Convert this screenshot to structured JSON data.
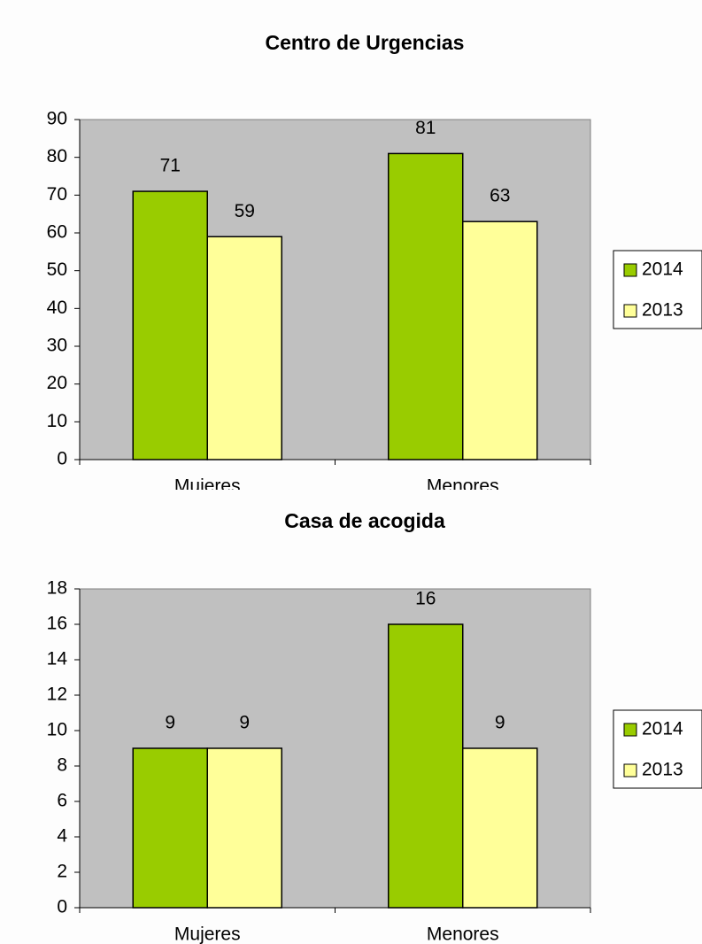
{
  "chart_data": [
    {
      "type": "bar",
      "title": "Centro de Urgencias",
      "categories": [
        "Mujeres",
        "Menores"
      ],
      "series": [
        {
          "name": "2014",
          "color": "#99cc00",
          "values": [
            71,
            81
          ]
        },
        {
          "name": "2013",
          "color": "#ffff99",
          "values": [
            59,
            63
          ]
        }
      ],
      "ylim": [
        0,
        90
      ],
      "yticks": [
        0,
        10,
        20,
        30,
        40,
        50,
        60,
        70,
        80,
        90
      ],
      "legend": "right"
    },
    {
      "type": "bar",
      "title": "Casa de acogida",
      "categories": [
        "Mujeres",
        "Menores"
      ],
      "series": [
        {
          "name": "2014",
          "color": "#99cc00",
          "values": [
            9,
            16
          ]
        },
        {
          "name": "2013",
          "color": "#ffff99",
          "values": [
            9,
            9
          ]
        }
      ],
      "ylim": [
        0,
        18
      ],
      "yticks": [
        0,
        2,
        4,
        6,
        8,
        10,
        12,
        14,
        16,
        18
      ],
      "legend": "right"
    }
  ]
}
